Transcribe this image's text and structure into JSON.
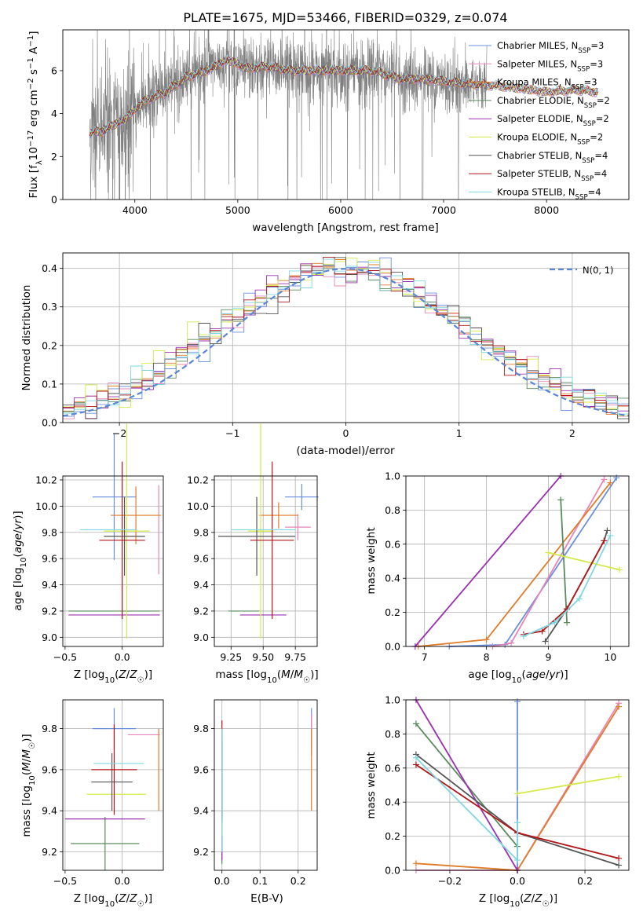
{
  "figure": {
    "title": "PLATE=1675, MJD=53466, FIBERID=0329, z=0.074"
  },
  "colors": {
    "Chabrier MILES": "#6a8fdc",
    "Salpeter MILES": "#e785b7",
    "Kroupa MILES": "#e07b2a",
    "Chabrier ELODIE": "#5a8a5e",
    "Salpeter ELODIE": "#9a30b0",
    "Kroupa ELODIE": "#d4ea4a",
    "Chabrier STELIB": "#555555",
    "Salpeter STELIB": "#b0161a",
    "Kroupa STELIB": "#7fd8e0",
    "data": "#808080",
    "normal": "#5b86d6",
    "grid": "#b0b0b0"
  },
  "chart_data": [
    {
      "id": "spectrum",
      "type": "line",
      "xlabel": "wavelength [Angstrom, rest frame]",
      "ylabel": "Flux [f_λ 10^-17 erg cm^-2 s^-1 A^-1]",
      "xlim": [
        3300,
        8800
      ],
      "ylim": [
        0,
        7.9
      ],
      "xticks": [
        4000,
        5000,
        6000,
        7000,
        8000
      ],
      "yticks": [
        0,
        2,
        4,
        6
      ],
      "grid": false,
      "legend_position": "upper-right",
      "legend": [
        {
          "label": "Chabrier MILES, N",
          "sub": "SSP",
          "suffix": "=3",
          "key": "Chabrier MILES"
        },
        {
          "label": "Salpeter MILES, N",
          "sub": "SSP",
          "suffix": "=3",
          "key": "Salpeter MILES"
        },
        {
          "label": "Kroupa MILES, N",
          "sub": "SSP",
          "suffix": "=3",
          "key": "Kroupa MILES"
        },
        {
          "label": "Chabrier ELODIE, N",
          "sub": "SSP",
          "suffix": "=2",
          "key": "Chabrier ELODIE"
        },
        {
          "label": "Salpeter ELODIE, N",
          "sub": "SSP",
          "suffix": "=2",
          "key": "Salpeter ELODIE"
        },
        {
          "label": "Kroupa ELODIE, N",
          "sub": "SSP",
          "suffix": "=2",
          "key": "Kroupa ELODIE"
        },
        {
          "label": "Chabrier STELIB, N",
          "sub": "SSP",
          "suffix": "=4",
          "key": "Chabrier STELIB"
        },
        {
          "label": "Salpeter STELIB, N",
          "sub": "SSP",
          "suffix": "=4",
          "key": "Salpeter STELIB"
        },
        {
          "label": "Kroupa STELIB, N",
          "sub": "SSP",
          "suffix": "=4",
          "key": "Kroupa STELIB"
        }
      ],
      "continuum_anchors": [
        [
          3560,
          3.1
        ],
        [
          3700,
          3.2
        ],
        [
          3800,
          3.5
        ],
        [
          3900,
          3.7
        ],
        [
          3960,
          4.0
        ],
        [
          4100,
          4.6
        ],
        [
          4300,
          5.0
        ],
        [
          4500,
          5.7
        ],
        [
          4700,
          6.0
        ],
        [
          4900,
          6.5
        ],
        [
          5100,
          6.1
        ],
        [
          5300,
          6.2
        ],
        [
          5500,
          6.0
        ],
        [
          5800,
          6.0
        ],
        [
          6000,
          6.0
        ],
        [
          6300,
          6.0
        ],
        [
          6600,
          5.6
        ],
        [
          6800,
          5.6
        ],
        [
          7000,
          5.5
        ],
        [
          7200,
          5.4
        ],
        [
          7500,
          5.3
        ],
        [
          7700,
          5.2
        ],
        [
          8000,
          5.0
        ],
        [
          8300,
          5.1
        ],
        [
          8500,
          5.0
        ]
      ],
      "data_range": [
        3560,
        7420
      ],
      "model_range": [
        3560,
        8500
      ]
    },
    {
      "id": "residuals",
      "type": "histogram",
      "xlabel": "(data-model)/error",
      "ylabel": "Normed distribution",
      "xlim": [
        -2.5,
        2.5
      ],
      "ylim": [
        0,
        0.44
      ],
      "xticks": [
        -2,
        -1,
        0,
        1,
        2
      ],
      "yticks": [
        0.0,
        0.1,
        0.2,
        0.3,
        0.4
      ],
      "grid": true,
      "legend_position": "upper-right",
      "normal_label": "N(0, 1)",
      "bin_width": 0.1
    },
    {
      "id": "age_vs_Z",
      "type": "scatter-errorbar",
      "xlabel": "Z [log10(Z/Z☉)]",
      "ylabel": "age  [log10(age/yr)]",
      "xlim": [
        -0.52,
        0.36
      ],
      "ylim": [
        8.93,
        10.23
      ],
      "xticks": [
        -0.5,
        0.0
      ],
      "yticks": [
        9.0,
        9.2,
        9.4,
        9.6,
        9.8,
        10.0,
        10.2
      ],
      "grid": true,
      "points": [
        {
          "model": "Chabrier MILES",
          "x": -0.07,
          "xerr": 0.19,
          "y": 10.07,
          "yerr": 0.48
        },
        {
          "model": "Salpeter MILES",
          "x": 0.32,
          "xerr": 0.0,
          "y": 9.82,
          "yerr": 0.34
        },
        {
          "model": "Kroupa MILES",
          "x": 0.12,
          "xerr": 0.22,
          "y": 9.93,
          "yerr": 0.22
        },
        {
          "model": "Chabrier ELODIE",
          "x": -0.07,
          "xerr": 0.4,
          "y": 9.2,
          "yerr": 0.0
        },
        {
          "model": "Salpeter ELODIE",
          "x": -0.07,
          "xerr": 0.4,
          "y": 9.17,
          "yerr": 0.0
        },
        {
          "model": "Kroupa ELODIE",
          "x": 0.04,
          "xerr": 0.2,
          "y": 9.81,
          "yerr": 0.82
        },
        {
          "model": "Chabrier STELIB",
          "x": 0.02,
          "xerr": 0.18,
          "y": 9.77,
          "yerr": 0.3
        },
        {
          "model": "Salpeter STELIB",
          "x": 0.0,
          "xerr": 0.2,
          "y": 9.74,
          "yerr": 0.6
        },
        {
          "model": "Kroupa STELIB",
          "x": -0.12,
          "xerr": 0.25,
          "y": 9.82,
          "yerr": 0.0
        }
      ]
    },
    {
      "id": "age_vs_mass",
      "type": "scatter-errorbar",
      "xlabel": "mass [log10(M/M☉)]",
      "xlim": [
        9.12,
        9.92
      ],
      "ylim": [
        8.93,
        10.23
      ],
      "xticks": [
        9.25,
        9.5,
        9.75
      ],
      "yticks": [
        9.0,
        9.2,
        9.4,
        9.6,
        9.8,
        10.0,
        10.2
      ],
      "grid": true,
      "points": [
        {
          "model": "Chabrier MILES",
          "x": 9.8,
          "xerr": 0.13,
          "y": 10.07,
          "yerr": 0.1
        },
        {
          "model": "Salpeter MILES",
          "x": 9.77,
          "xerr": 0.1,
          "y": 9.84,
          "yerr": 0.1
        },
        {
          "model": "Kroupa MILES",
          "x": 9.62,
          "xerr": 0.15,
          "y": 9.93,
          "yerr": 0.1
        },
        {
          "model": "Chabrier ELODIE",
          "x": 9.35,
          "xerr": 0.12,
          "y": 9.2,
          "yerr": 0.0
        },
        {
          "model": "Salpeter ELODIE",
          "x": 9.5,
          "xerr": 0.18,
          "y": 9.17,
          "yerr": 0.0
        },
        {
          "model": "Kroupa ELODIE",
          "x": 9.48,
          "xerr": 0.1,
          "y": 9.81,
          "yerr": 0.82
        },
        {
          "model": "Chabrier STELIB",
          "x": 9.45,
          "xerr": 0.3,
          "y": 9.77,
          "yerr": 0.3
        },
        {
          "model": "Salpeter STELIB",
          "x": 9.57,
          "xerr": 0.17,
          "y": 9.74,
          "yerr": 0.6
        },
        {
          "model": "Kroupa STELIB",
          "x": 9.5,
          "xerr": 0.25,
          "y": 9.82,
          "yerr": 0.0
        }
      ]
    },
    {
      "id": "weight_vs_age",
      "type": "line",
      "xlabel": "age  [log10(age/yr)]",
      "ylabel": "mass weight",
      "xlim": [
        6.7,
        10.3
      ],
      "ylim": [
        0,
        1
      ],
      "xticks": [
        7,
        8,
        9,
        10
      ],
      "yticks": [
        0.0,
        0.2,
        0.4,
        0.6,
        0.8,
        1.0
      ],
      "grid": true,
      "series": [
        {
          "model": "Chabrier MILES",
          "points": [
            [
              7.4,
              0.0
            ],
            [
              8.3,
              0.01
            ],
            [
              10.1,
              0.99
            ]
          ]
        },
        {
          "model": "Salpeter MILES",
          "points": [
            [
              8.1,
              0.0
            ],
            [
              8.4,
              0.02
            ],
            [
              9.9,
              0.98
            ]
          ]
        },
        {
          "model": "Kroupa MILES",
          "points": [
            [
              6.9,
              0.0
            ],
            [
              8.0,
              0.04
            ],
            [
              10.0,
              0.96
            ]
          ]
        },
        {
          "model": "Chabrier ELODIE",
          "points": [
            [
              9.2,
              0.86
            ],
            [
              9.3,
              0.14
            ]
          ]
        },
        {
          "model": "Salpeter ELODIE",
          "points": [
            [
              6.85,
              0.0
            ],
            [
              9.2,
              1.0
            ]
          ]
        },
        {
          "model": "Kroupa ELODIE",
          "points": [
            [
              9.0,
              0.55
            ],
            [
              10.15,
              0.45
            ]
          ]
        },
        {
          "model": "Chabrier STELIB",
          "points": [
            [
              8.95,
              0.03
            ],
            [
              9.3,
              0.22
            ],
            [
              9.9,
              0.62
            ],
            [
              9.95,
              0.68
            ]
          ]
        },
        {
          "model": "Salpeter STELIB",
          "points": [
            [
              8.6,
              0.07
            ],
            [
              8.9,
              0.09
            ],
            [
              9.3,
              0.22
            ],
            [
              9.9,
              0.62
            ]
          ]
        },
        {
          "model": "Kroupa STELIB",
          "points": [
            [
              8.6,
              0.06
            ],
            [
              9.1,
              0.14
            ],
            [
              9.5,
              0.28
            ],
            [
              10.0,
              0.65
            ]
          ]
        }
      ]
    },
    {
      "id": "mass_vs_Z",
      "type": "scatter-errorbar",
      "xlabel": "Z [log10(Z/Z☉)]",
      "ylabel": "mass [log10(M/M☉)]",
      "xlim": [
        -0.52,
        0.36
      ],
      "ylim": [
        9.11,
        9.94
      ],
      "xticks": [
        -0.5,
        0.0
      ],
      "yticks": [
        9.2,
        9.4,
        9.6,
        9.8
      ],
      "grid": true,
      "points": [
        {
          "model": "Chabrier MILES",
          "x": -0.07,
          "xerr": 0.19,
          "y": 9.8,
          "yerr": 0.1
        },
        {
          "model": "Salpeter MILES",
          "x": 0.19,
          "xerr": 0.14,
          "y": 9.77,
          "yerr": 0.0
        },
        {
          "model": "Kroupa MILES",
          "x": 0.32,
          "xerr": 0.0,
          "y": 9.6,
          "yerr": 0.2
        },
        {
          "model": "Chabrier ELODIE",
          "x": -0.15,
          "xerr": 0.3,
          "y": 9.24,
          "yerr": 0.13
        },
        {
          "model": "Salpeter ELODIE",
          "x": -0.15,
          "xerr": 0.35,
          "y": 9.36,
          "yerr": 0.0
        },
        {
          "model": "Kroupa ELODIE",
          "x": -0.05,
          "xerr": 0.26,
          "y": 9.48,
          "yerr": 0.0
        },
        {
          "model": "Chabrier STELIB",
          "x": -0.09,
          "xerr": 0.18,
          "y": 9.54,
          "yerr": 0.14
        },
        {
          "model": "Salpeter STELIB",
          "x": -0.07,
          "xerr": 0.2,
          "y": 9.6,
          "yerr": 0.22
        },
        {
          "model": "Kroupa STELIB",
          "x": -0.03,
          "xerr": 0.22,
          "y": 9.63,
          "yerr": 0.0
        }
      ]
    },
    {
      "id": "mass_vs_ebv",
      "type": "scatter-errorbar",
      "xlabel": "E(B-V)",
      "xlim": [
        -0.02,
        0.25
      ],
      "ylim": [
        9.11,
        9.94
      ],
      "xticks": [
        0.0,
        0.1,
        0.2
      ],
      "yticks": [
        9.2,
        9.4,
        9.6,
        9.8
      ],
      "grid": true,
      "points": [
        {
          "model": "Chabrier MILES",
          "x": 0.235,
          "xerr": 0.0,
          "y": 9.8,
          "yerr": 0.1
        },
        {
          "model": "Salpeter MILES",
          "x": 0.235,
          "xerr": 0.0,
          "y": 9.77,
          "yerr": 0.1
        },
        {
          "model": "Kroupa MILES",
          "x": 0.235,
          "xerr": 0.0,
          "y": 9.6,
          "yerr": 0.2
        },
        {
          "model": "Chabrier ELODIE",
          "x": 0.0,
          "xerr": 0.0,
          "y": 9.24,
          "yerr": 0.1
        },
        {
          "model": "Salpeter ELODIE",
          "x": 0.0,
          "xerr": 0.0,
          "y": 9.36,
          "yerr": 0.2
        },
        {
          "model": "Kroupa ELODIE",
          "x": 0.0,
          "xerr": 0.0,
          "y": 9.48,
          "yerr": 0.2
        },
        {
          "model": "Chabrier STELIB",
          "x": 0.0,
          "xerr": 0.0,
          "y": 9.54,
          "yerr": 0.2
        },
        {
          "model": "Salpeter STELIB",
          "x": 0.0,
          "xerr": 0.0,
          "y": 9.6,
          "yerr": 0.24
        },
        {
          "model": "Kroupa STELIB",
          "x": 0.0,
          "xerr": 0.0,
          "y": 9.5,
          "yerr": 0.3
        }
      ]
    },
    {
      "id": "weight_vs_Z",
      "type": "line",
      "xlabel": "Z [log10(Z/Z☉)]",
      "ylabel": "mass weight",
      "xlim": [
        -0.33,
        0.33
      ],
      "ylim": [
        0,
        1
      ],
      "xticks": [
        -0.2,
        0.0,
        0.2
      ],
      "yticks": [
        0.0,
        0.2,
        0.4,
        0.6,
        0.8,
        1.0
      ],
      "grid": true,
      "series": [
        {
          "model": "Chabrier MILES",
          "points": [
            [
              0.0,
              0.0
            ],
            [
              0.0,
              0.99
            ]
          ]
        },
        {
          "model": "Salpeter MILES",
          "points": [
            [
              -0.3,
              0.0
            ],
            [
              0.0,
              0.0
            ],
            [
              0.3,
              0.98
            ]
          ]
        },
        {
          "model": "Kroupa MILES",
          "points": [
            [
              -0.3,
              0.04
            ],
            [
              0.0,
              0.0
            ],
            [
              0.3,
              0.96
            ]
          ]
        },
        {
          "model": "Chabrier ELODIE",
          "points": [
            [
              -0.3,
              0.86
            ],
            [
              0.0,
              0.14
            ]
          ]
        },
        {
          "model": "Salpeter ELODIE",
          "points": [
            [
              -0.3,
              1.0
            ],
            [
              0.0,
              0.0
            ]
          ]
        },
        {
          "model": "Kroupa ELODIE",
          "points": [
            [
              0.0,
              0.45
            ],
            [
              0.3,
              0.55
            ]
          ]
        },
        {
          "model": "Chabrier STELIB",
          "points": [
            [
              -0.3,
              0.68
            ],
            [
              0.0,
              0.22
            ],
            [
              0.3,
              0.03
            ]
          ]
        },
        {
          "model": "Salpeter STELIB",
          "points": [
            [
              -0.3,
              0.62
            ],
            [
              0.0,
              0.22
            ],
            [
              0.3,
              0.07
            ]
          ]
        },
        {
          "model": "Kroupa STELIB",
          "points": [
            [
              -0.3,
              0.66
            ],
            [
              0.0,
              0.06
            ],
            [
              0.0,
              0.28
            ]
          ]
        }
      ]
    }
  ]
}
